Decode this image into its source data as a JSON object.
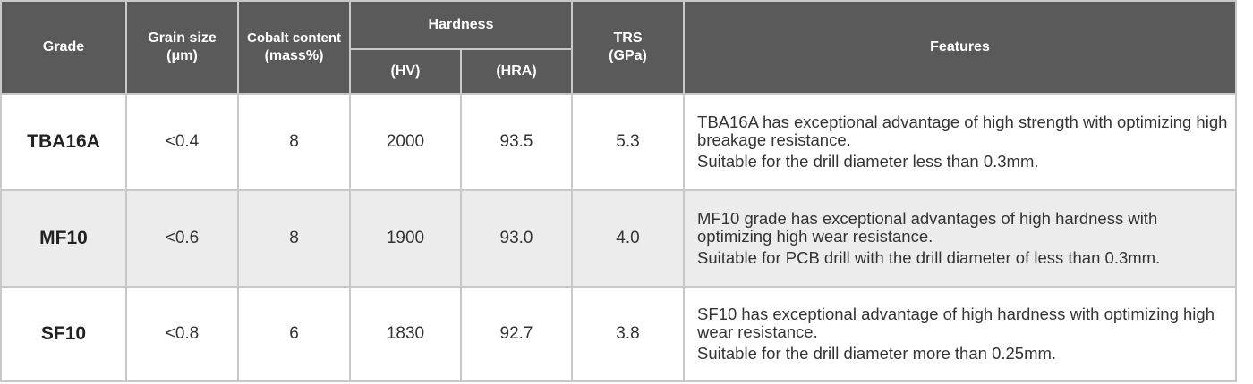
{
  "table": {
    "headers": {
      "grade": "Grade",
      "grain_size": [
        "Grain size",
        "(μm)"
      ],
      "cobalt_content": [
        "Cobalt content",
        "(mass%)"
      ],
      "hardness": "Hardness",
      "hardness_hv": "(HV)",
      "hardness_hra": "(HRA)",
      "trs": [
        "TRS",
        "(GPa)"
      ],
      "features": "Features"
    },
    "rows": [
      {
        "grade": "TBA16A",
        "grain_size": "<0.4",
        "cobalt": "8",
        "hv": "2000",
        "hra": "93.5",
        "trs": "5.3",
        "features": [
          "TBA16A has exceptional advantage of high strength with optimizing high breakage resistance.",
          "Suitable for the drill diameter less than 0.3mm."
        ]
      },
      {
        "grade": "MF10",
        "grain_size": "<0.6",
        "cobalt": "8",
        "hv": "1900",
        "hra": "93.0",
        "trs": "4.0",
        "features": [
          "MF10 grade has exceptional advantages of high hardness with optimizing high wear resistance.",
          "Suitable for PCB drill with the drill diameter of less than 0.3mm."
        ]
      },
      {
        "grade": "SF10",
        "grain_size": "<0.8",
        "cobalt": "6",
        "hv": "1830",
        "hra": "92.7",
        "trs": "3.8",
        "features": [
          "SF10 has exceptional advantage of high hardness with optimizing high wear resistance.",
          "Suitable for the drill diameter more than 0.25mm."
        ]
      }
    ]
  },
  "colors": {
    "header_bg": "#5a5a5a",
    "header_text": "#ffffff",
    "alt_row_bg": "#ececec",
    "border": "#c8c8c8"
  }
}
